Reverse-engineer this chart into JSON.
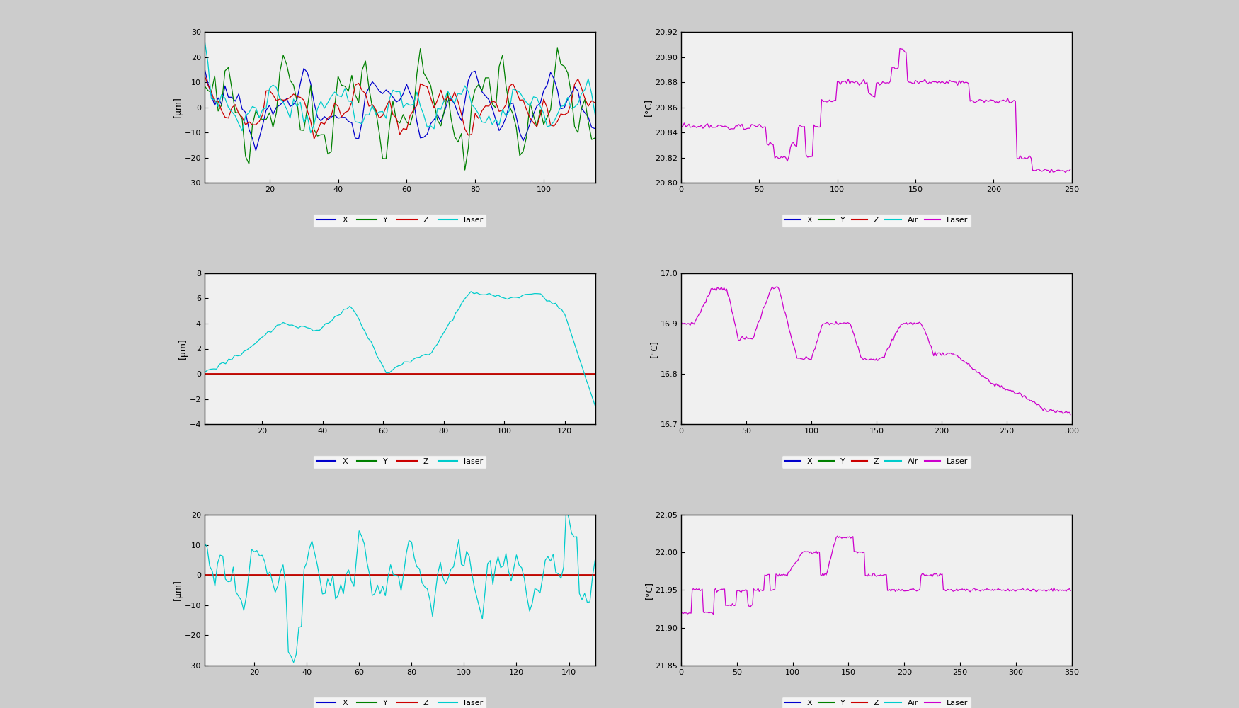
{
  "bg_color": "#cccccc",
  "plot_bg_color": "#f0f0f0",
  "row1_left": {
    "ylabel": "[μm]",
    "xlim": [
      1,
      115
    ],
    "ylim": [
      -30,
      30
    ],
    "yticks": [
      -30,
      -20,
      -10,
      0,
      10,
      20,
      30
    ],
    "xticks": [
      20,
      40,
      60,
      80,
      100
    ],
    "legend": [
      "X",
      "Y",
      "Z",
      "laser"
    ],
    "legend_colors": [
      "#0000cc",
      "#008000",
      "#cc0000",
      "#00cccc"
    ]
  },
  "row1_right": {
    "ylabel": "[°C]",
    "xlim": [
      0,
      250
    ],
    "ylim": [
      20.8,
      20.92
    ],
    "yticks": [
      20.8,
      20.82,
      20.84,
      20.86,
      20.88,
      20.9,
      20.92
    ],
    "xticks": [
      0,
      50,
      100,
      150,
      200,
      250
    ],
    "legend": [
      "X",
      "Y",
      "Z",
      "Air",
      "Laser"
    ],
    "legend_colors": [
      "#0000cc",
      "#008000",
      "#cc0000",
      "#00cccc",
      "#cc00cc"
    ]
  },
  "row2_left": {
    "ylabel": "[μm]",
    "xlim": [
      1,
      130
    ],
    "ylim": [
      -4,
      8
    ],
    "yticks": [
      -4,
      -2,
      0,
      2,
      4,
      6,
      8
    ],
    "xticks": [
      20,
      40,
      60,
      80,
      100,
      120
    ],
    "legend": [
      "X",
      "Y",
      "Z",
      "laser"
    ],
    "legend_colors": [
      "#0000cc",
      "#008000",
      "#cc0000",
      "#00cccc"
    ]
  },
  "row2_right": {
    "ylabel": "[°C]",
    "xlim": [
      0,
      300
    ],
    "ylim": [
      16.7,
      17.0
    ],
    "yticks": [
      16.7,
      16.8,
      16.9,
      17.0
    ],
    "xticks": [
      0,
      50,
      100,
      150,
      200,
      250,
      300
    ],
    "legend": [
      "X",
      "Y",
      "Z",
      "Air",
      "Laser"
    ],
    "legend_colors": [
      "#0000cc",
      "#008000",
      "#cc0000",
      "#00cccc",
      "#cc00cc"
    ]
  },
  "row3_left": {
    "ylabel": "[μm]",
    "xlim": [
      1,
      150
    ],
    "ylim": [
      -30,
      20
    ],
    "yticks": [
      -30,
      -20,
      -10,
      0,
      10,
      20
    ],
    "xticks": [
      20,
      40,
      60,
      80,
      100,
      120,
      140
    ],
    "legend": [
      "X",
      "Y",
      "Z",
      "laser"
    ],
    "legend_colors": [
      "#0000cc",
      "#008000",
      "#cc0000",
      "#00cccc"
    ]
  },
  "row3_right": {
    "ylabel": "[°C]",
    "xlim": [
      0,
      350
    ],
    "ylim": [
      21.85,
      22.05
    ],
    "yticks": [
      21.85,
      21.9,
      21.95,
      22.0,
      22.05
    ],
    "xticks": [
      0,
      50,
      100,
      150,
      200,
      250,
      300,
      350
    ],
    "legend": [
      "X",
      "Y",
      "Z",
      "Air",
      "Laser"
    ],
    "legend_colors": [
      "#0000cc",
      "#008000",
      "#cc0000",
      "#00cccc",
      "#cc00cc"
    ]
  }
}
